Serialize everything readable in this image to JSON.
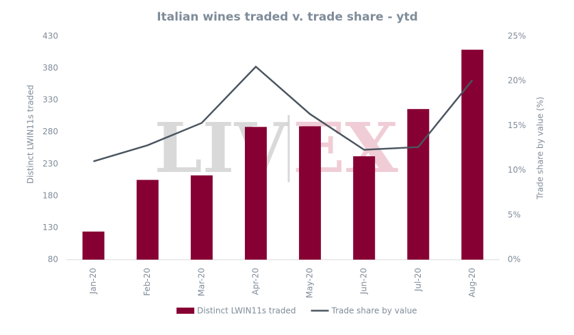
{
  "chart_data": {
    "type": "bar-line",
    "title": "Italian wines traded v. trade share - ytd",
    "y_label": "Distinct LWIN11s traded",
    "y2_label": "Trade share by value (%)",
    "watermark": [
      "LIV",
      "EX"
    ],
    "categories": [
      "Jan-20",
      "Feb-20",
      "Mar-20",
      "Apr-20",
      "May-20",
      "Jun-20",
      "Jul-20",
      "Aug-20"
    ],
    "series": [
      {
        "name": "Distinct LWIN11s traded",
        "type": "bar",
        "color": "#870033",
        "values": [
          124,
          205,
          212,
          288,
          289,
          242,
          316,
          409
        ]
      },
      {
        "name": "Trade share by value",
        "type": "line",
        "axis": "y2",
        "color": "#4a5560",
        "values": [
          11.0,
          12.8,
          15.3,
          21.6,
          16.3,
          12.3,
          12.6,
          20.1
        ]
      }
    ],
    "ylim": [
      80,
      430
    ],
    "yticks": [
      80,
      130,
      180,
      230,
      280,
      330,
      380,
      430
    ],
    "y2lim": [
      0,
      25
    ],
    "y2ticks": [
      {
        "value": 0,
        "label": "0%"
      },
      {
        "value": 5,
        "label": "5%"
      },
      {
        "value": 10,
        "label": "10%"
      },
      {
        "value": 15,
        "label": "15%"
      },
      {
        "value": 20,
        "label": "20%"
      },
      {
        "value": 25,
        "label": "25%"
      }
    ],
    "grid": false,
    "legend": "bottom"
  }
}
